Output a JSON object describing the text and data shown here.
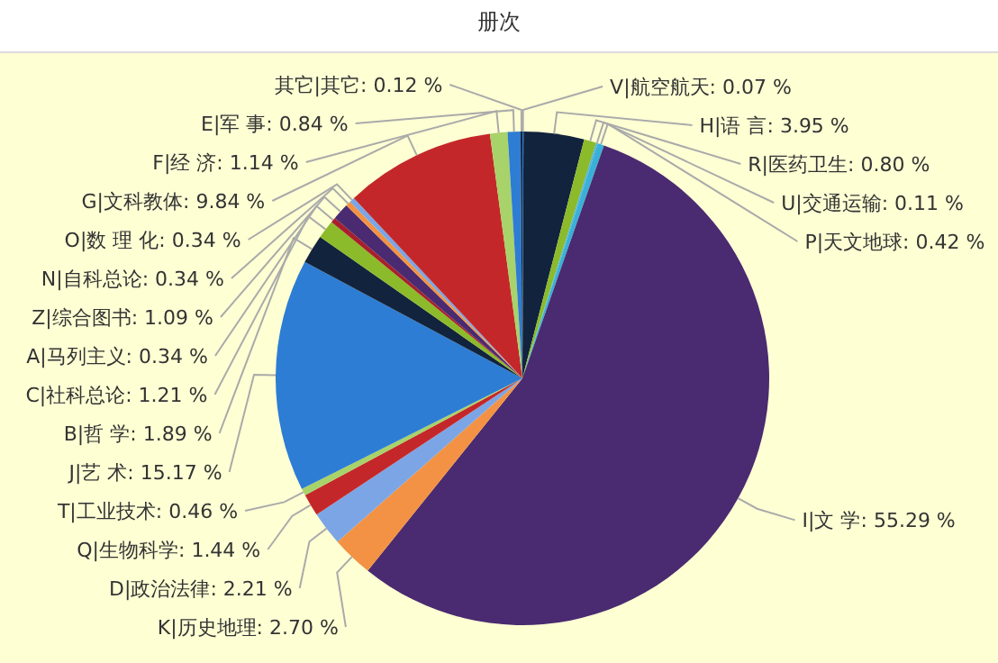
{
  "chart_data": {
    "type": "pie",
    "title": "册次",
    "categories": [
      "V|航空航天",
      "H|语 言",
      "R|医药卫生",
      "U|交通运输",
      "P|天文地球",
      "I|文 学",
      "K|历史地理",
      "D|政治法律",
      "Q|生物科学",
      "T|工业技术",
      "J|艺 术",
      "B|哲 学",
      "C|社科总论",
      "A|马列主义",
      "Z|综合图书",
      "N|自科总论",
      "O|数 理 化",
      "G|文科教体",
      "F|经 济",
      "E|军 事",
      "其它|其它"
    ],
    "values": [
      0.07,
      3.95,
      0.8,
      0.11,
      0.42,
      55.29,
      2.7,
      2.21,
      1.44,
      0.46,
      15.17,
      1.89,
      1.21,
      0.34,
      1.09,
      0.34,
      0.34,
      9.84,
      1.14,
      0.84,
      0.12
    ],
    "value_labels": [
      "0.07 %",
      "3.95 %",
      "0.80 %",
      "0.11 %",
      "0.42 %",
      "55.29 %",
      "2.70 %",
      "2.21 %",
      "1.44 %",
      "0.46 %",
      "15.17 %",
      "1.89 %",
      "1.21 %",
      "0.34 %",
      "1.09 %",
      "0.34 %",
      "0.34 %",
      "9.84 %",
      "1.14 %",
      "0.84 %",
      "0.12 %"
    ],
    "colors": [
      "#2e7dd4",
      "#12233d",
      "#8bba2b",
      "#4fb3e0",
      "#3ab0d8",
      "#4a2a70",
      "#f39244",
      "#7ca5e6",
      "#c4272a",
      "#a8d26a",
      "#2e7dd4",
      "#12233d",
      "#8bba2b",
      "#a81f2c",
      "#4a2a70",
      "#f39244",
      "#7ca5e6",
      "#c4272a",
      "#a8d26a",
      "#2e7dd4",
      "#12233d"
    ]
  }
}
